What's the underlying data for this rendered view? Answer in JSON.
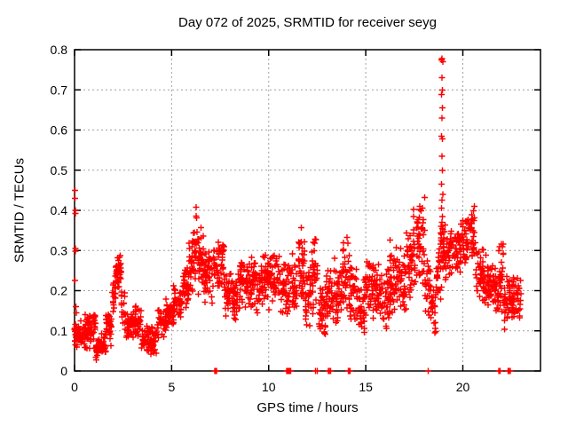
{
  "chart_data": {
    "type": "scatter",
    "title": "Day 072 of 2025, SRMTID for receiver seyg",
    "xlabel": "GPS time / hours",
    "ylabel": "SRMTID / TECUs",
    "xlim": [
      0,
      24
    ],
    "ylim": [
      0,
      0.8
    ],
    "xticks": {
      "values": [
        0,
        5,
        10,
        15,
        20
      ],
      "labels": [
        "0",
        "5",
        "10",
        "15",
        "20"
      ]
    },
    "yticks": {
      "values": [
        0,
        0.1,
        0.2,
        0.3,
        0.4,
        0.5,
        0.6,
        0.7,
        0.8
      ],
      "labels": [
        "0",
        "0.1",
        "0.2",
        "0.3",
        "0.4",
        "0.5",
        "0.6",
        "0.7",
        "0.8"
      ]
    },
    "grid": true,
    "legend": "none",
    "marker": {
      "shape": "plus",
      "color": "#ff0000",
      "size": 7
    },
    "series_name": "SRMTID",
    "cluster_bands_format": [
      "x_start_hours",
      "x_end_hours",
      "y_min_TECUs",
      "y_max_TECUs",
      "point_count"
    ],
    "cluster_bands": [
      [
        0.0,
        0.45,
        0.05,
        0.13,
        50
      ],
      [
        0.45,
        0.9,
        0.05,
        0.145,
        50
      ],
      [
        0.9,
        1.08,
        0.07,
        0.16,
        18
      ],
      [
        1.08,
        1.35,
        0.025,
        0.085,
        30
      ],
      [
        1.35,
        1.62,
        0.03,
        0.1,
        25
      ],
      [
        1.62,
        1.95,
        0.06,
        0.16,
        28
      ],
      [
        1.95,
        2.1,
        0.12,
        0.24,
        18
      ],
      [
        2.1,
        2.42,
        0.2,
        0.295,
        45
      ],
      [
        2.42,
        2.6,
        0.1,
        0.21,
        16
      ],
      [
        2.6,
        3.05,
        0.065,
        0.155,
        40
      ],
      [
        3.05,
        3.45,
        0.07,
        0.165,
        35
      ],
      [
        3.45,
        3.8,
        0.04,
        0.12,
        32
      ],
      [
        3.8,
        4.25,
        0.03,
        0.115,
        38
      ],
      [
        4.25,
        4.7,
        0.08,
        0.17,
        35
      ],
      [
        4.7,
        5.1,
        0.1,
        0.19,
        35
      ],
      [
        5.1,
        5.55,
        0.12,
        0.225,
        40
      ],
      [
        5.55,
        5.9,
        0.14,
        0.3,
        35
      ],
      [
        5.9,
        6.08,
        0.18,
        0.34,
        20
      ],
      [
        6.08,
        6.38,
        0.21,
        0.42,
        35
      ],
      [
        6.38,
        6.65,
        0.18,
        0.36,
        28
      ],
      [
        6.65,
        7.15,
        0.16,
        0.31,
        42
      ],
      [
        7.15,
        7.45,
        0.18,
        0.33,
        28
      ],
      [
        7.45,
        7.72,
        0.2,
        0.35,
        25
      ],
      [
        7.72,
        8.1,
        0.13,
        0.27,
        32
      ],
      [
        8.1,
        8.5,
        0.11,
        0.25,
        35
      ],
      [
        8.5,
        9.0,
        0.15,
        0.3,
        45
      ],
      [
        9.0,
        9.5,
        0.14,
        0.285,
        42
      ],
      [
        9.5,
        10.05,
        0.13,
        0.3,
        45
      ],
      [
        10.05,
        10.55,
        0.14,
        0.31,
        42
      ],
      [
        10.55,
        11.1,
        0.13,
        0.3,
        45
      ],
      [
        11.1,
        11.45,
        0.13,
        0.3,
        30
      ],
      [
        11.45,
        11.9,
        0.15,
        0.37,
        38
      ],
      [
        11.9,
        12.15,
        0.1,
        0.26,
        25
      ],
      [
        12.15,
        12.55,
        0.12,
        0.365,
        34
      ],
      [
        12.55,
        12.95,
        0.06,
        0.22,
        36
      ],
      [
        12.95,
        13.35,
        0.09,
        0.26,
        35
      ],
      [
        13.35,
        13.75,
        0.11,
        0.3,
        35
      ],
      [
        13.75,
        14.15,
        0.12,
        0.35,
        35
      ],
      [
        14.15,
        14.55,
        0.1,
        0.28,
        35
      ],
      [
        14.55,
        14.95,
        0.08,
        0.235,
        35
      ],
      [
        14.95,
        15.45,
        0.12,
        0.3,
        42
      ],
      [
        15.45,
        15.85,
        0.11,
        0.27,
        35
      ],
      [
        15.85,
        16.25,
        0.1,
        0.26,
        35
      ],
      [
        16.25,
        16.7,
        0.13,
        0.33,
        40
      ],
      [
        16.7,
        17.1,
        0.14,
        0.31,
        35
      ],
      [
        17.1,
        17.45,
        0.16,
        0.36,
        32
      ],
      [
        17.45,
        17.75,
        0.18,
        0.41,
        30
      ],
      [
        17.75,
        18.05,
        0.2,
        0.45,
        30
      ],
      [
        18.05,
        18.35,
        0.12,
        0.3,
        25
      ],
      [
        18.35,
        18.62,
        0.07,
        0.22,
        22
      ],
      [
        18.62,
        18.85,
        0.15,
        0.32,
        20
      ],
      [
        18.85,
        19.1,
        0.2,
        0.4,
        30
      ],
      [
        19.1,
        19.45,
        0.22,
        0.38,
        30
      ],
      [
        19.45,
        19.9,
        0.24,
        0.36,
        38
      ],
      [
        19.9,
        20.25,
        0.25,
        0.4,
        32
      ],
      [
        20.25,
        20.65,
        0.27,
        0.455,
        36
      ],
      [
        20.65,
        21.1,
        0.17,
        0.32,
        40
      ],
      [
        21.1,
        21.55,
        0.15,
        0.295,
        40
      ],
      [
        21.55,
        21.85,
        0.13,
        0.27,
        28
      ],
      [
        21.85,
        22.1,
        0.13,
        0.335,
        28
      ],
      [
        22.1,
        22.55,
        0.1,
        0.255,
        40
      ],
      [
        22.55,
        23.0,
        0.1,
        0.275,
        38
      ]
    ],
    "outlier_points": [
      [
        0.03,
        0.45
      ],
      [
        0.03,
        0.43
      ],
      [
        0.04,
        0.4
      ],
      [
        0.05,
        0.392
      ],
      [
        0.04,
        0.305
      ],
      [
        0.05,
        0.298
      ],
      [
        0.03,
        0.225
      ],
      [
        0.06,
        0.16
      ],
      [
        0.09,
        0.145
      ],
      [
        18.9,
        0.775
      ],
      [
        18.93,
        0.778
      ],
      [
        18.96,
        0.77
      ],
      [
        18.92,
        0.73
      ],
      [
        18.94,
        0.7
      ],
      [
        18.91,
        0.688
      ],
      [
        18.95,
        0.655
      ],
      [
        18.93,
        0.63
      ],
      [
        18.9,
        0.585
      ],
      [
        18.95,
        0.578
      ],
      [
        18.92,
        0.535
      ],
      [
        18.94,
        0.5
      ],
      [
        18.91,
        0.465
      ],
      [
        18.96,
        0.44
      ],
      [
        18.93,
        0.425
      ],
      [
        18.9,
        0.405
      ],
      [
        18.95,
        0.385
      ],
      [
        18.92,
        0.37
      ],
      [
        18.94,
        0.355
      ],
      [
        18.91,
        0.34
      ]
    ],
    "zero_points": [
      7.22,
      7.27,
      7.32,
      10.92,
      10.96,
      11.0,
      11.04,
      11.08,
      11.12,
      12.42,
      12.5,
      13.08,
      13.13,
      13.18,
      14.1,
      14.15,
      14.2,
      18.22,
      21.86,
      21.93,
      22.32,
      22.38,
      22.44
    ]
  },
  "colors": {
    "marker": "#ff0000",
    "grid": "#a0a0a0",
    "axis": "#000000",
    "background": "#ffffff",
    "text": "#000000"
  }
}
